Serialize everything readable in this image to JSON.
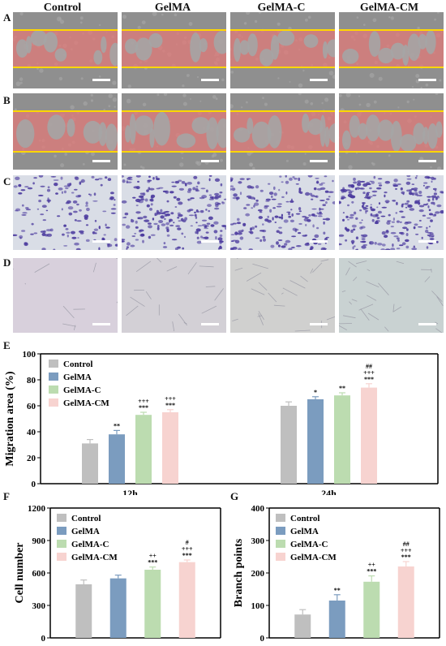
{
  "figure": {
    "group_labels": [
      "Control",
      "GelMA",
      "GelMA-C",
      "GelMA-CM"
    ],
    "panel_letters": {
      "a": "A",
      "b": "B",
      "c": "C",
      "d": "D",
      "e": "E",
      "f": "F",
      "g": "G"
    }
  },
  "colors": {
    "control": "#bfbfbf",
    "gelma": "#7b9cbf",
    "gelmac": "#bcdcb0",
    "gelmacm": "#f7d3d0",
    "overlay_red": "#e07a78",
    "overlay_yellow": "#ffd700",
    "stain_purple": "#4b3a9e"
  },
  "chart_data": [
    {
      "id": "E",
      "type": "bar",
      "ylabel": "Migration area (%)",
      "ylim": [
        0,
        100
      ],
      "yticks": [
        0,
        20,
        40,
        60,
        80,
        100
      ],
      "categories": [
        "12h",
        "24h"
      ],
      "legend": "top-left",
      "series": [
        {
          "name": "Control",
          "values": [
            31,
            60
          ],
          "errors": [
            3,
            3
          ],
          "sig": [
            "",
            ""
          ]
        },
        {
          "name": "GelMA",
          "values": [
            38,
            65
          ],
          "errors": [
            3,
            2
          ],
          "sig": [
            "**",
            "*"
          ]
        },
        {
          "name": "GelMA-C",
          "values": [
            53,
            68
          ],
          "errors": [
            2,
            2
          ],
          "sig": [
            "***|+++",
            "**"
          ]
        },
        {
          "name": "GelMA-CM",
          "values": [
            55,
            74
          ],
          "errors": [
            2,
            3
          ],
          "sig": [
            "***|+++",
            "***|+++|##"
          ]
        }
      ]
    },
    {
      "id": "F",
      "type": "bar",
      "ylabel": "Cell number",
      "ylim": [
        0,
        1200
      ],
      "yticks": [
        0,
        300,
        600,
        900,
        1200
      ],
      "categories": [
        "Control",
        "GelMA",
        "GelMA-C",
        "GelMA-CM"
      ],
      "legend": "top-left",
      "values": [
        495,
        550,
        630,
        700
      ],
      "errors": [
        40,
        30,
        25,
        20
      ],
      "sig": [
        "",
        "",
        "***|++",
        "***|+++|#"
      ]
    },
    {
      "id": "G",
      "type": "bar",
      "ylabel": "Branch points",
      "ylim": [
        0,
        400
      ],
      "yticks": [
        0,
        100,
        200,
        300,
        400
      ],
      "categories": [
        "Control",
        "GelMA",
        "GelMA-C",
        "GelMA-CM"
      ],
      "legend": "top-left",
      "values": [
        72,
        115,
        173,
        220
      ],
      "errors": [
        15,
        18,
        18,
        15
      ],
      "sig": [
        "",
        "**",
        "***|++",
        "***|+++|##"
      ]
    }
  ]
}
